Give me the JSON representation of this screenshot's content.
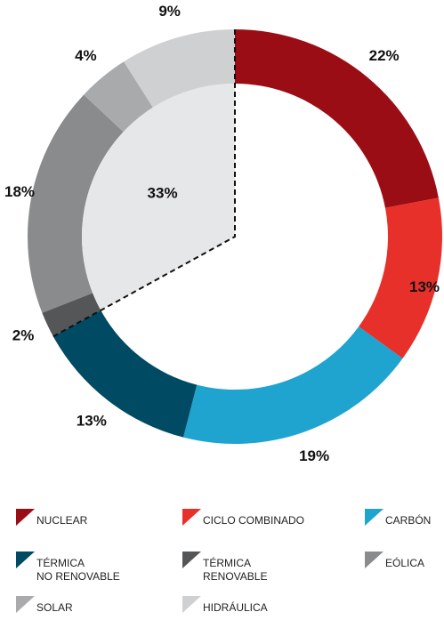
{
  "chart_data": {
    "type": "donut",
    "series": [
      {
        "name": "NUCLEAR",
        "color": "#9b0d14",
        "value": 22,
        "value_label": "22%"
      },
      {
        "name": "CICLO COMBINADO",
        "color": "#e8302a",
        "value": 13,
        "value_label": "13%"
      },
      {
        "name": "CARBÓN",
        "color": "#1fa3cf",
        "value": 19,
        "value_label": "19%"
      },
      {
        "name": "TÉRMICA\nNO RENOVABLE",
        "color": "#004a63",
        "value": 13,
        "value_label": "13%"
      },
      {
        "name": "TÉRMICA\nRENOVABLE",
        "color": "#555658",
        "value": 2,
        "value_label": "2%"
      },
      {
        "name": "EÓLICA",
        "color": "#8a8b8d",
        "value": 18,
        "value_label": "18%"
      },
      {
        "name": "SOLAR",
        "color": "#a9aaac",
        "value": 4,
        "value_label": "4%"
      },
      {
        "name": "HIDRÁULICA",
        "color": "#cfd0d2",
        "value": 9,
        "value_label": "9%"
      }
    ],
    "highlight": {
      "value": 33,
      "label": "33%",
      "color": "#e6e7e9"
    }
  }
}
